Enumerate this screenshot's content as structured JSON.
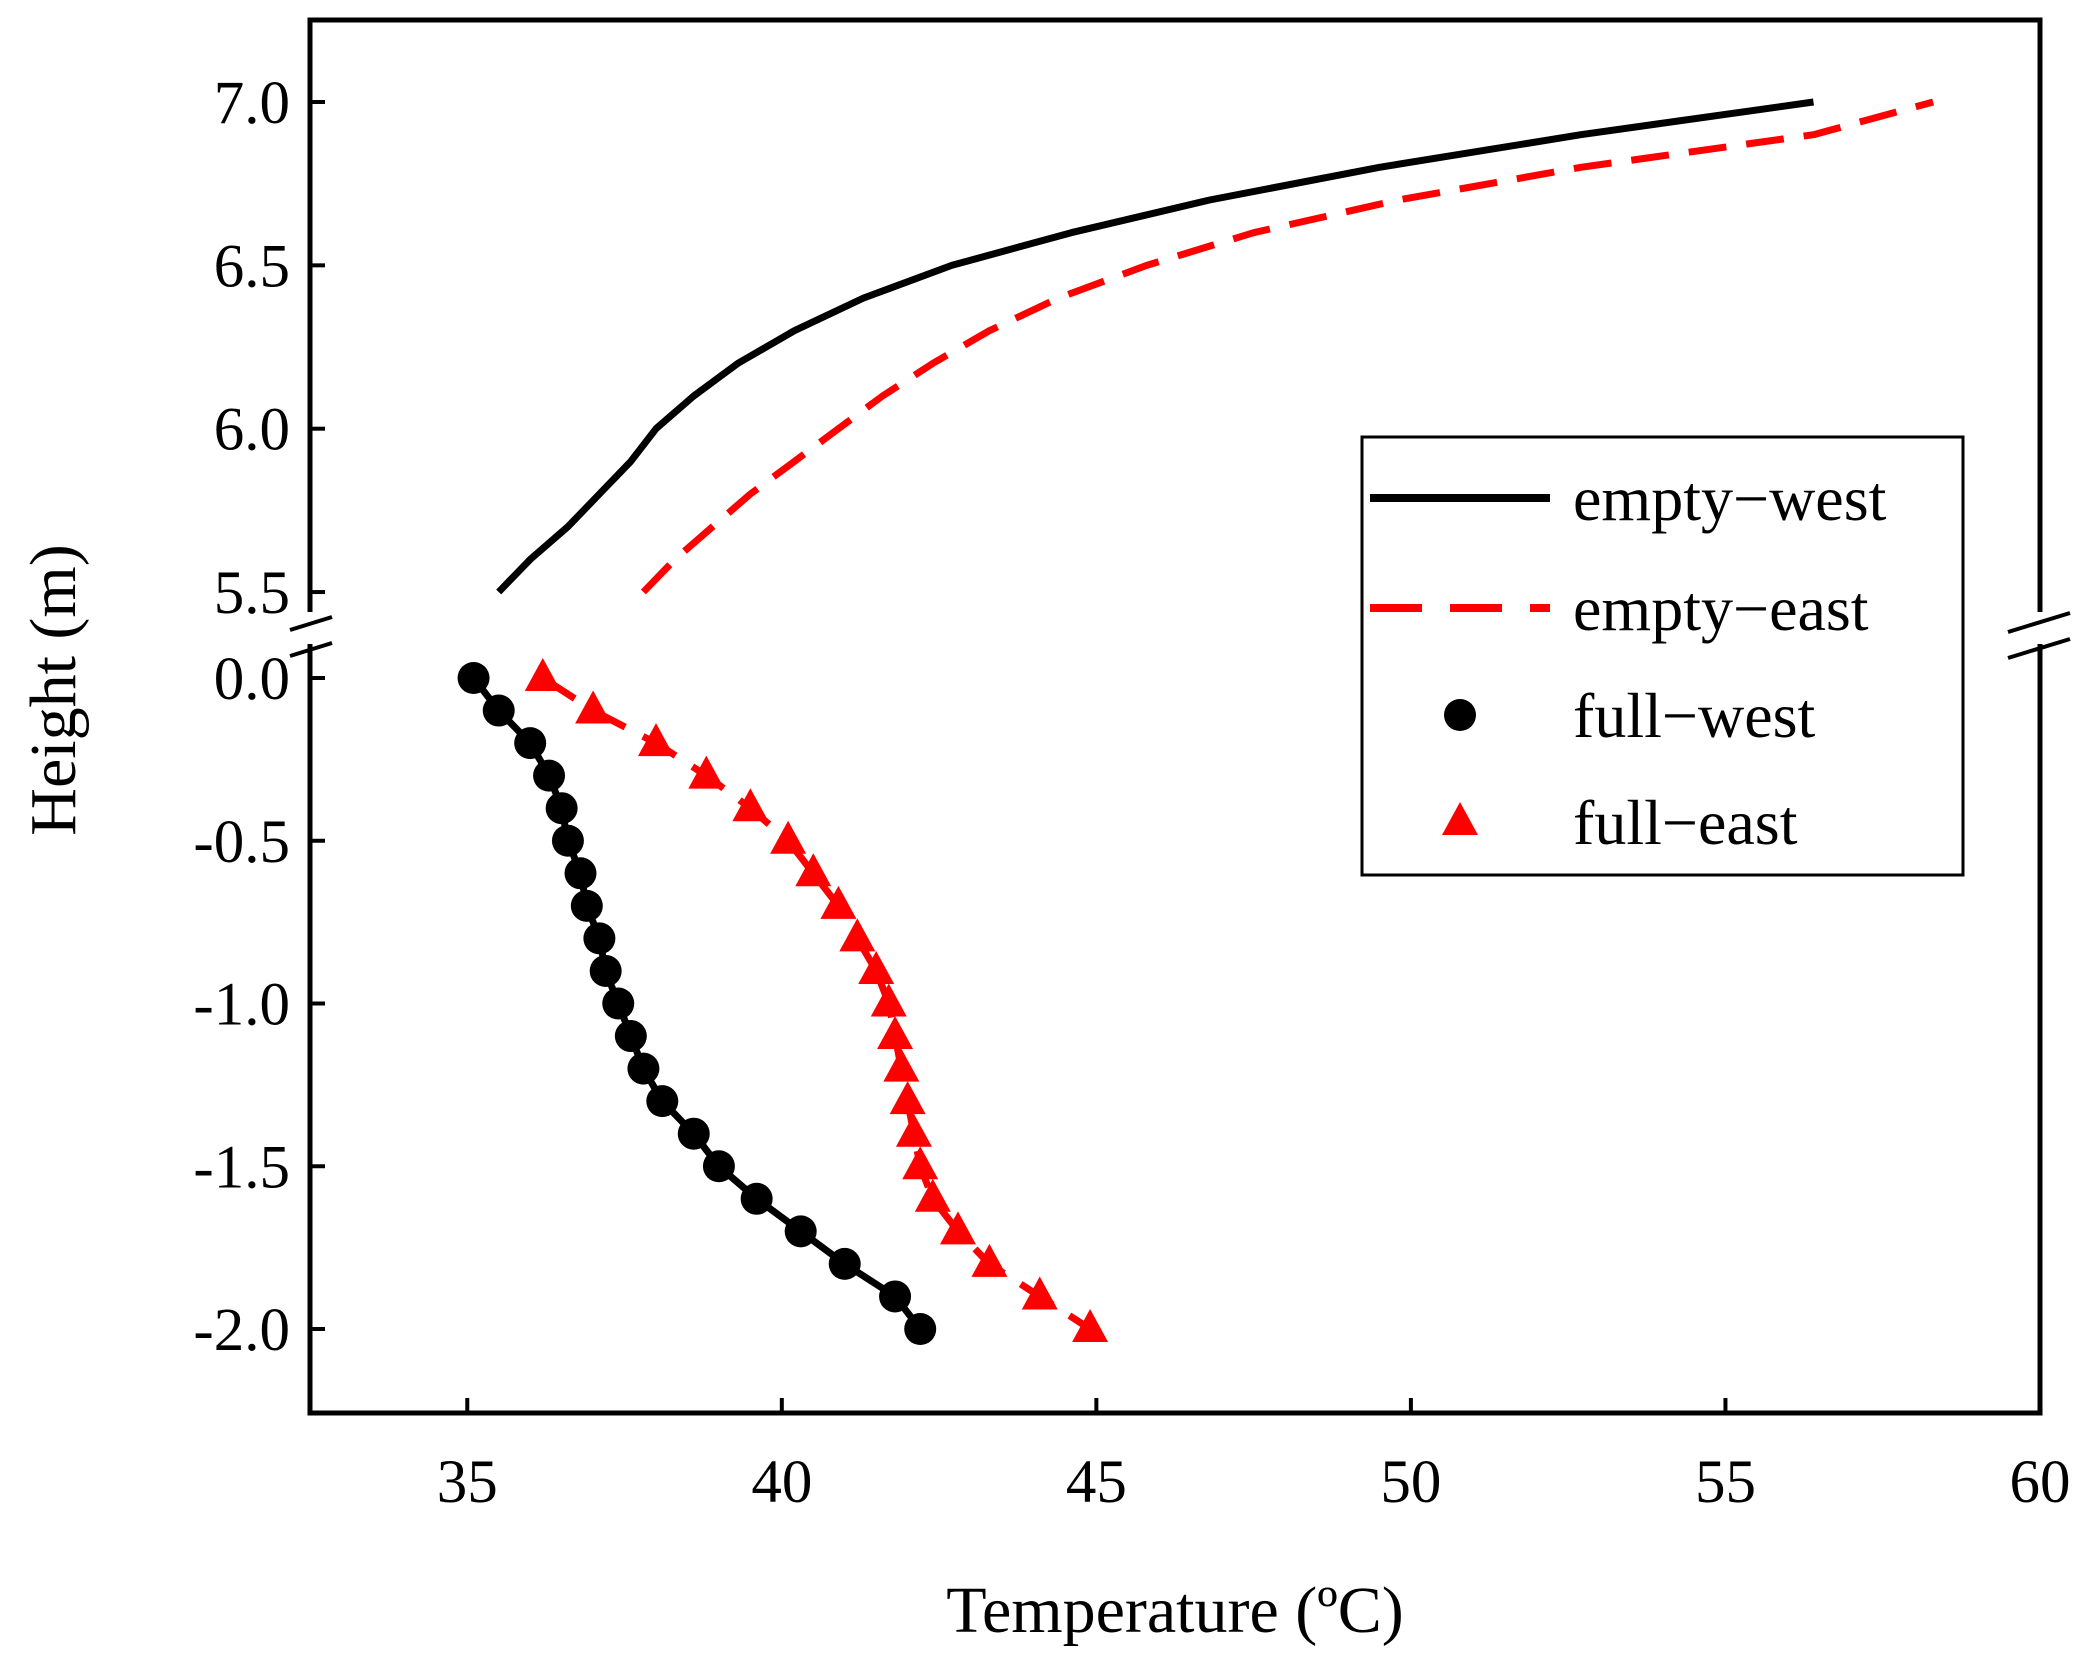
{
  "chart_data": {
    "type": "line",
    "title": "",
    "xlabel": "Temperature (ºC)",
    "ylabel": "Height (m)",
    "xlim": [
      32.5,
      60
    ],
    "x_ticks": [
      "35",
      "40",
      "45",
      "50",
      "55",
      "60"
    ],
    "y_ticks": [
      "7.0",
      "6.5",
      "6.0",
      "5.5",
      "0.0",
      "-0.5",
      "-1.0",
      "-1.5",
      "-2.0"
    ],
    "y_axis_break": {
      "lower_segment": [
        -2.0,
        0.0
      ],
      "upper_segment": [
        5.5,
        7.0
      ]
    },
    "legend_position": "center-right",
    "series": [
      {
        "name": "empty−west",
        "color": "#000000",
        "line": "solid",
        "marker": "none",
        "points": [
          [
            35.5,
            5.5
          ],
          [
            36.0,
            5.6
          ],
          [
            36.6,
            5.7
          ],
          [
            37.1,
            5.8
          ],
          [
            37.6,
            5.9
          ],
          [
            38.0,
            6.0
          ],
          [
            38.6,
            6.1
          ],
          [
            39.3,
            6.2
          ],
          [
            40.2,
            6.3
          ],
          [
            41.3,
            6.4
          ],
          [
            42.7,
            6.5
          ],
          [
            44.6,
            6.6
          ],
          [
            46.8,
            6.7
          ],
          [
            49.5,
            6.8
          ],
          [
            52.7,
            6.9
          ],
          [
            56.4,
            7.0
          ]
        ]
      },
      {
        "name": "empty−east",
        "color": "#ff0000",
        "line": "dashed",
        "marker": "none",
        "points": [
          [
            37.8,
            5.5
          ],
          [
            38.3,
            5.6
          ],
          [
            38.9,
            5.7
          ],
          [
            39.5,
            5.8
          ],
          [
            40.2,
            5.9
          ],
          [
            40.9,
            6.0
          ],
          [
            41.6,
            6.1
          ],
          [
            42.4,
            6.2
          ],
          [
            43.3,
            6.3
          ],
          [
            44.4,
            6.4
          ],
          [
            45.8,
            6.5
          ],
          [
            47.5,
            6.6
          ],
          [
            49.8,
            6.7
          ],
          [
            52.7,
            6.8
          ],
          [
            56.4,
            6.9
          ],
          [
            58.3,
            7.0
          ]
        ]
      },
      {
        "name": "full−west",
        "color": "#000000",
        "line": "solid",
        "marker": "circle",
        "points": [
          [
            35.1,
            0.0
          ],
          [
            35.5,
            -0.1
          ],
          [
            36.0,
            -0.2
          ],
          [
            36.3,
            -0.3
          ],
          [
            36.5,
            -0.4
          ],
          [
            36.6,
            -0.5
          ],
          [
            36.8,
            -0.6
          ],
          [
            36.9,
            -0.7
          ],
          [
            37.1,
            -0.8
          ],
          [
            37.2,
            -0.9
          ],
          [
            37.4,
            -1.0
          ],
          [
            37.6,
            -1.1
          ],
          [
            37.8,
            -1.2
          ],
          [
            38.1,
            -1.3
          ],
          [
            38.6,
            -1.4
          ],
          [
            39.0,
            -1.5
          ],
          [
            39.6,
            -1.6
          ],
          [
            40.3,
            -1.7
          ],
          [
            41.0,
            -1.8
          ],
          [
            41.8,
            -1.9
          ],
          [
            42.2,
            -2.0
          ]
        ]
      },
      {
        "name": "full−east",
        "color": "#ff0000",
        "line": "dashed",
        "marker": "triangle",
        "points": [
          [
            36.2,
            0.0
          ],
          [
            37.0,
            -0.1
          ],
          [
            38.0,
            -0.2
          ],
          [
            38.8,
            -0.3
          ],
          [
            39.5,
            -0.4
          ],
          [
            40.1,
            -0.5
          ],
          [
            40.5,
            -0.6
          ],
          [
            40.9,
            -0.7
          ],
          [
            41.2,
            -0.8
          ],
          [
            41.5,
            -0.9
          ],
          [
            41.7,
            -1.0
          ],
          [
            41.8,
            -1.1
          ],
          [
            41.9,
            -1.2
          ],
          [
            42.0,
            -1.3
          ],
          [
            42.1,
            -1.4
          ],
          [
            42.2,
            -1.5
          ],
          [
            42.4,
            -1.6
          ],
          [
            42.8,
            -1.7
          ],
          [
            43.3,
            -1.8
          ],
          [
            44.1,
            -1.9
          ],
          [
            44.9,
            -2.0
          ]
        ]
      }
    ]
  }
}
